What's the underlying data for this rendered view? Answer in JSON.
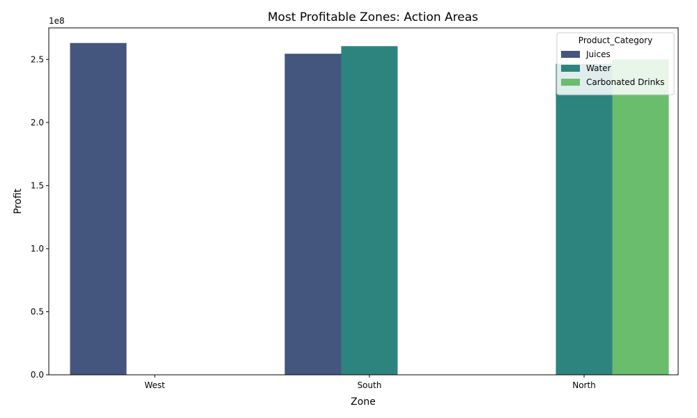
{
  "chart_data": {
    "type": "bar",
    "title": "Most Profitable Zones: Action Areas",
    "xlabel": "Zone",
    "ylabel": "Profit",
    "y_offset_label": "1e8",
    "categories": [
      "West",
      "South",
      "North"
    ],
    "y_ticks": [
      "0.0",
      "0.5",
      "1.0",
      "1.5",
      "2.0",
      "2.5"
    ],
    "ylim": [
      0,
      2.75
    ],
    "y_multiplier": 100000000,
    "legend": {
      "title": "Product_Category",
      "placement": "top-right"
    },
    "series": [
      {
        "name": "Juices",
        "color": "#45567e",
        "values": [
          2.63,
          2.545,
          null
        ]
      },
      {
        "name": "Water",
        "color": "#2d847f",
        "values": [
          null,
          2.605,
          2.465
        ]
      },
      {
        "name": "Carbonated Drinks",
        "color": "#69bd6d",
        "values": [
          null,
          null,
          2.5
        ]
      }
    ],
    "grid": false
  }
}
